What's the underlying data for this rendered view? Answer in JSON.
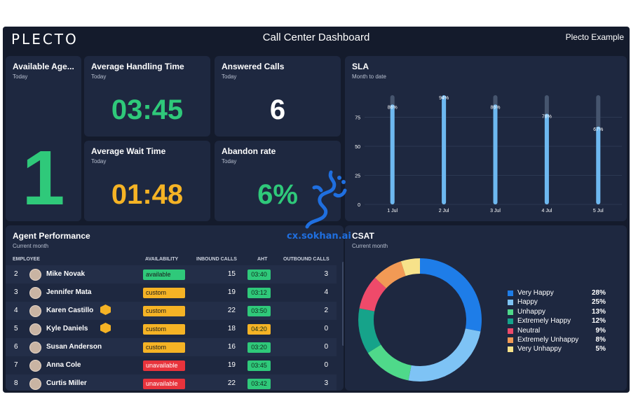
{
  "header": {
    "logo": "PLECTO",
    "title": "Call Center Dashboard",
    "account": "Plecto Example"
  },
  "cards": {
    "available_agents": {
      "title": "Available Age...",
      "subtitle": "Today",
      "value": "1"
    },
    "avg_handling": {
      "title": "Average Handling Time",
      "subtitle": "Today",
      "value": "03:45"
    },
    "answered_calls": {
      "title": "Answered Calls",
      "subtitle": "Today",
      "value": "6"
    },
    "avg_wait": {
      "title": "Average Wait Time",
      "subtitle": "Today",
      "value": "01:48"
    },
    "abandon_rate": {
      "title": "Abandon rate",
      "subtitle": "Today",
      "value": "6%"
    }
  },
  "sla": {
    "title": "SLA",
    "subtitle": "Month to date",
    "colors": {
      "bar": "#6db8f0",
      "bar_bg": "#46556e",
      "grid": "#2c3852",
      "text": "#ffffff"
    }
  },
  "chart_data": {
    "type": "bar",
    "title": "SLA",
    "categories": [
      "1 Jul",
      "2 Jul",
      "3 Jul",
      "4 Jul",
      "5 Jul"
    ],
    "values": [
      86,
      94,
      86,
      78,
      67
    ],
    "data_labels": [
      "86%",
      "94%",
      "86%",
      "78%",
      "67%"
    ],
    "yticks": [
      "0",
      "25",
      "50",
      "75"
    ],
    "ylim": [
      0,
      94
    ],
    "grid": true
  },
  "agent_performance": {
    "title": "Agent Performance",
    "subtitle": "Current month",
    "columns": [
      "EMPLOYEE",
      "AVAILABILITY",
      "INBOUND CALLS",
      "AHT",
      "OUTBOUND CALLS"
    ],
    "rows": [
      {
        "rank": "2",
        "name": "Mike Novak",
        "badge": false,
        "availability": "available",
        "inbound": "15",
        "aht": "03:40",
        "aht_status": "ok",
        "outbound": "3"
      },
      {
        "rank": "3",
        "name": "Jennifer Mata",
        "badge": false,
        "availability": "custom",
        "inbound": "19",
        "aht": "03:12",
        "aht_status": "ok",
        "outbound": "4"
      },
      {
        "rank": "4",
        "name": "Karen Castillo",
        "badge": true,
        "availability": "custom",
        "inbound": "22",
        "aht": "03:50",
        "aht_status": "ok",
        "outbound": "2"
      },
      {
        "rank": "5",
        "name": "Kyle Daniels",
        "badge": true,
        "availability": "custom",
        "inbound": "18",
        "aht": "04:20",
        "aht_status": "warn",
        "outbound": "0"
      },
      {
        "rank": "6",
        "name": "Susan Anderson",
        "badge": false,
        "availability": "custom",
        "inbound": "16",
        "aht": "03:20",
        "aht_status": "ok",
        "outbound": "0"
      },
      {
        "rank": "7",
        "name": "Anna Cole",
        "badge": false,
        "availability": "unavailable",
        "inbound": "19",
        "aht": "03:45",
        "aht_status": "ok",
        "outbound": "0"
      },
      {
        "rank": "8",
        "name": "Curtis Miller",
        "badge": false,
        "availability": "unavailable",
        "inbound": "22",
        "aht": "03:42",
        "aht_status": "ok",
        "outbound": "3"
      }
    ]
  },
  "csat": {
    "title": "CSAT",
    "subtitle": "Current month",
    "segments": [
      {
        "label": "Very Happy",
        "value": 28,
        "display": "28%",
        "color": "#1e7de8"
      },
      {
        "label": "Happy",
        "value": 25,
        "display": "25%",
        "color": "#7ec3f5"
      },
      {
        "label": "Unhappy",
        "value": 13,
        "display": "13%",
        "color": "#4fd98a"
      },
      {
        "label": "Extremely Happy",
        "value": 12,
        "display": "12%",
        "color": "#16a38a"
      },
      {
        "label": "Neutral",
        "value": 9,
        "display": "9%",
        "color": "#ef4a6a"
      },
      {
        "label": "Extremely Unhappy",
        "value": 8,
        "display": "8%",
        "color": "#f29a55"
      },
      {
        "label": "Very Unhappy",
        "value": 5,
        "display": "5%",
        "color": "#f7e28a"
      }
    ]
  },
  "watermark": {
    "text": "cx.sokhan.ai"
  }
}
